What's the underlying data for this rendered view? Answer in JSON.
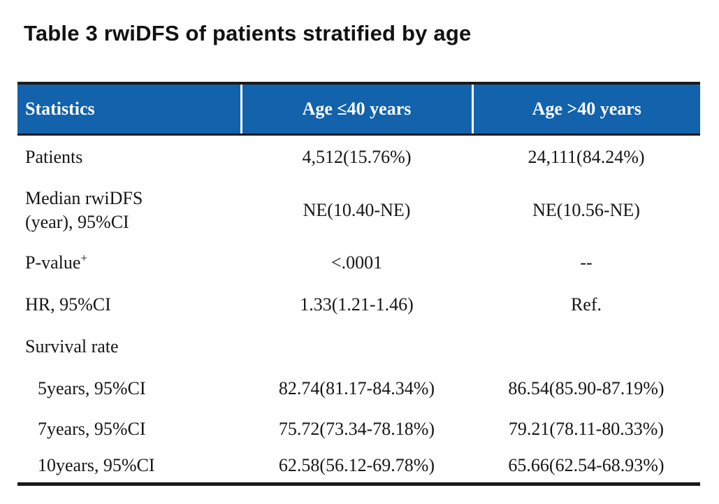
{
  "title": "Table 3 rwiDFS of patients stratified by age",
  "colors": {
    "header_bg": "#1262ac",
    "header_text": "#ffffff",
    "rule": "#1a1a1a",
    "body_text": "#161616",
    "page_bg": "#ffffff"
  },
  "table": {
    "header": {
      "statistics": "Statistics",
      "age_le_40": "Age ≤40 years",
      "age_gt_40": "Age >40 years"
    },
    "rows": [
      {
        "label": "Patients",
        "v1": "4,512(15.76%)",
        "v2": "24,111(84.24%)"
      },
      {
        "label": "Median rwiDFS\n(year), 95%CI",
        "v1": "NE(10.40-NE)",
        "v2": "NE(10.56-NE)"
      },
      {
        "label": "P-value",
        "label_sup": "+",
        "v1": "<.0001",
        "v2": "--"
      },
      {
        "label": "HR, 95%CI",
        "v1": "1.33(1.21-1.46)",
        "v2": "Ref."
      },
      {
        "label": "Survival rate",
        "v1": "",
        "v2": ""
      },
      {
        "label": "5years, 95%CI",
        "v1": "82.74(81.17-84.34%)",
        "v2": "86.54(85.90-87.19%)"
      },
      {
        "label": "7years, 95%CI",
        "v1": "75.72(73.34-78.18%)",
        "v2": "79.21(78.11-80.33%)"
      },
      {
        "label": "10years, 95%CI",
        "v1": "62.58(56.12-69.78%)",
        "v2": "65.66(62.54-68.93%)"
      }
    ]
  }
}
